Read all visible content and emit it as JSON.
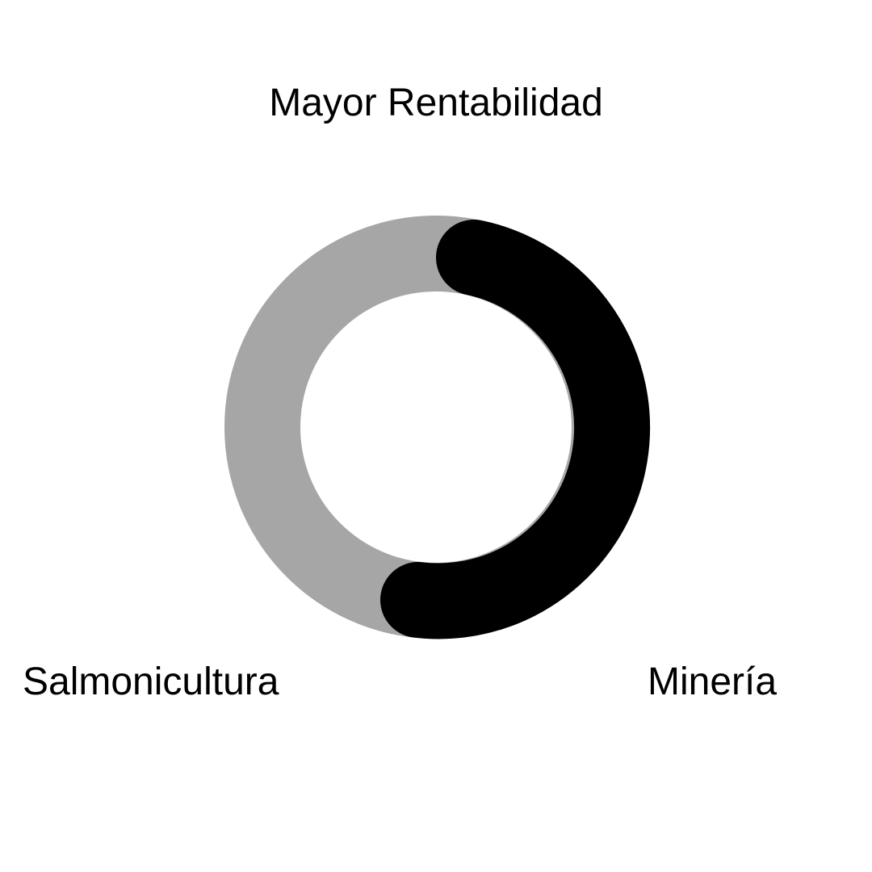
{
  "diagram": {
    "title": "Mayor Rentabilidad",
    "left_label": "Salmonicultura",
    "right_label": "Minería",
    "colors": {
      "track": "#a6a6a6",
      "highlight": "#000000",
      "text": "#000000",
      "background": "#ffffff"
    }
  }
}
